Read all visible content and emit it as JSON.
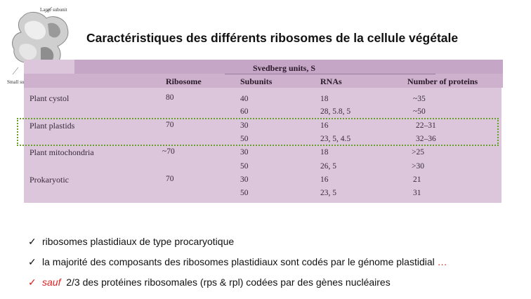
{
  "figure": {
    "large_subunit_label": "Large subunit",
    "small_subunit_label": "Small subunit"
  },
  "title": "Caractéristiques des différents ribosomes de la cellule végétale",
  "table": {
    "group_header": "Svedberg units, S",
    "columns": [
      "Ribosome",
      "Subunits",
      "RNAs",
      "Number of proteins"
    ],
    "rows": [
      {
        "name": "Plant cystol",
        "ribosome": "80",
        "sub": [
          {
            "subunit": "40",
            "rnas": "18",
            "proteins": "~35"
          },
          {
            "subunit": "60",
            "rnas": "28, 5.8, 5",
            "proteins": "~50"
          }
        ]
      },
      {
        "name": "Plant plastids",
        "ribosome": "70",
        "sub": [
          {
            "subunit": "30",
            "rnas": "16",
            "proteins": "22–31"
          },
          {
            "subunit": "50",
            "rnas": "23, 5, 4.5",
            "proteins": "32–36"
          }
        ]
      },
      {
        "name": "Plant mitochondria",
        "ribosome": "~70",
        "sub": [
          {
            "subunit": "30",
            "rnas": "18",
            "proteins": ">25"
          },
          {
            "subunit": "50",
            "rnas": "26, 5",
            "proteins": ">30"
          }
        ]
      },
      {
        "name": "Prokaryotic",
        "ribosome": "70",
        "sub": [
          {
            "subunit": "30",
            "rnas": "16",
            "proteins": "21"
          },
          {
            "subunit": "50",
            "rnas": "23, 5",
            "proteins": "31"
          }
        ]
      }
    ]
  },
  "bullets": {
    "check": "✓",
    "b1": "ribosomes plastidiaux de type procaryotique",
    "b2_text": "la majorité des composants des ribosomes plastidiaux sont codés par le génome plastidial",
    "b2_ellipsis": "…",
    "b3_sauf": "sauf",
    "b3_text": "2/3 des protéines ribosomales (rps & rpl) codées par des gènes nucléaires"
  },
  "colors": {
    "accent_red": "#e02020",
    "table_bg": "#dcc6dc",
    "highlight_border": "#6aa02c"
  }
}
